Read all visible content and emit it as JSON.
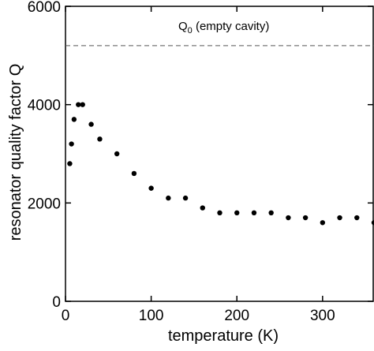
{
  "chart_data": {
    "type": "scatter",
    "xlabel": "temperature (K)",
    "ylabel": "resonator quality factor Q",
    "xlim": [
      0,
      360
    ],
    "ylim": [
      0,
      6000
    ],
    "x_ticks": [
      0,
      100,
      200,
      300
    ],
    "y_ticks": [
      0,
      2000,
      4000,
      6000
    ],
    "x_tick_labels": [
      "0",
      "100",
      "200",
      "300"
    ],
    "y_tick_labels": [
      "0",
      "2000",
      "4000",
      "6000"
    ],
    "grid": false,
    "series": [
      {
        "points": [
          {
            "x": 5,
            "y": 2800
          },
          {
            "x": 7,
            "y": 3200
          },
          {
            "x": 10,
            "y": 3700
          },
          {
            "x": 15,
            "y": 4000
          },
          {
            "x": 20,
            "y": 4000
          },
          {
            "x": 30,
            "y": 3600
          },
          {
            "x": 40,
            "y": 3300
          },
          {
            "x": 60,
            "y": 3000
          },
          {
            "x": 80,
            "y": 2600
          },
          {
            "x": 100,
            "y": 2300
          },
          {
            "x": 120,
            "y": 2100
          },
          {
            "x": 140,
            "y": 2100
          },
          {
            "x": 160,
            "y": 1900
          },
          {
            "x": 180,
            "y": 1800
          },
          {
            "x": 200,
            "y": 1800
          },
          {
            "x": 220,
            "y": 1800
          },
          {
            "x": 240,
            "y": 1800
          },
          {
            "x": 260,
            "y": 1700
          },
          {
            "x": 280,
            "y": 1700
          },
          {
            "x": 300,
            "y": 1600
          },
          {
            "x": 320,
            "y": 1700
          },
          {
            "x": 340,
            "y": 1700
          },
          {
            "x": 360,
            "y": 1600
          }
        ]
      }
    ],
    "reference_line": {
      "y": 5200,
      "label_main": "Q",
      "label_sub": "0",
      "label_rest": " (empty cavity)"
    }
  }
}
